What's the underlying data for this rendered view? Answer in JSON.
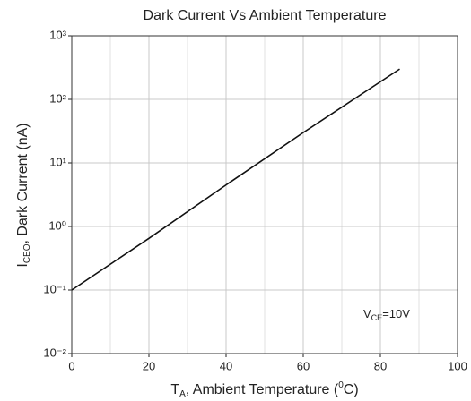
{
  "chart_data": {
    "type": "line",
    "title": "Dark Current Vs Ambient Temperature",
    "xlabel": {
      "main": "T",
      "sub": "A",
      "rest": ", Ambient Temperature (",
      "sup": "0",
      "end": "C)"
    },
    "ylabel": {
      "main": "I",
      "sub": "CEO",
      "rest": ", Dark Current (nA)"
    },
    "annotation": {
      "main": "V",
      "sub": "CE",
      "rest": "=10V"
    },
    "x": [
      0,
      20,
      40,
      60,
      85
    ],
    "series": [
      {
        "color": "#111111",
        "values": [
          0.1,
          0.65,
          4.5,
          30,
          300
        ]
      }
    ],
    "xlim": [
      0,
      100
    ],
    "xticks": [
      0,
      20,
      40,
      60,
      80,
      100
    ],
    "xminorticks": [
      10,
      30,
      50,
      70,
      90
    ],
    "ylim": [
      0.01,
      1000
    ],
    "ylog": true,
    "yticks": [
      {
        "value": 0.01,
        "label": "10⁻²"
      },
      {
        "value": 0.1,
        "label": "10⁻¹"
      },
      {
        "value": 1,
        "label": "10⁰"
      },
      {
        "value": 10,
        "label": "10¹"
      },
      {
        "value": 100,
        "label": "10²"
      },
      {
        "value": 1000,
        "label": "10³"
      }
    ],
    "grid": true
  }
}
